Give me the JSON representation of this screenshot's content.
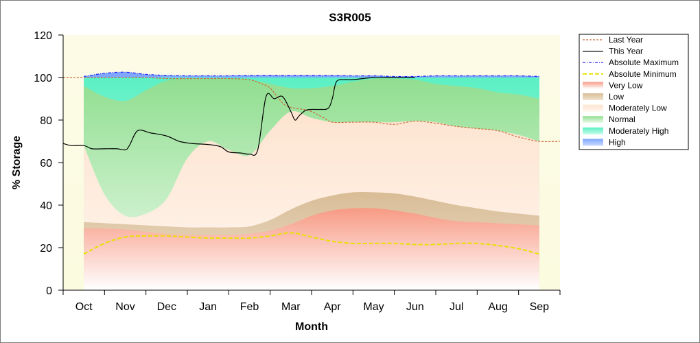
{
  "chart_data": {
    "type": "area",
    "title": "S3R005",
    "xlabel": "Month",
    "ylabel": "% Storage",
    "ylim": [
      0,
      120
    ],
    "yticks": [
      0,
      20,
      40,
      60,
      80,
      100,
      120
    ],
    "x_tick_labels": [
      "Oct",
      "Nov",
      "Dec",
      "Jan",
      "Feb",
      "Mar",
      "Apr",
      "May",
      "Jun",
      "Jul",
      "Aug",
      "Sep"
    ],
    "x_tick_positions": [
      0,
      1,
      2,
      3,
      4,
      5,
      6,
      7,
      8,
      9,
      10,
      11
    ],
    "xlim": [
      -0.5,
      11.5
    ],
    "grid": false,
    "legend_placement": "right",
    "colors": {
      "plot_bg": "#fcfde8",
      "very_low": "#f79a84",
      "low": "#d8bc96",
      "moderately_low": "#fde4d0",
      "normal": "#9ce29c",
      "moderately_high": "#62f0c8",
      "high": "#7fa6ff",
      "last_year": "#cc6a3a",
      "this_year": "#000000",
      "abs_max": "#1a1aff",
      "abs_min": "#e8e000"
    },
    "legend": [
      {
        "key": "last_year",
        "label": "Last Year",
        "kind": "line",
        "style": "dash"
      },
      {
        "key": "this_year",
        "label": "This Year",
        "kind": "line",
        "style": "solid"
      },
      {
        "key": "abs_max",
        "label": "Absolute Maximum",
        "kind": "line",
        "style": "dashdot"
      },
      {
        "key": "abs_min",
        "label": "Absolute Minimum",
        "kind": "line",
        "style": "dashbold"
      },
      {
        "key": "very_low",
        "label": "Very Low",
        "kind": "area"
      },
      {
        "key": "low",
        "label": "Low",
        "kind": "area"
      },
      {
        "key": "moderately_low",
        "label": "Moderately Low",
        "kind": "area"
      },
      {
        "key": "normal",
        "label": "Normal",
        "kind": "area"
      },
      {
        "key": "moderately_high",
        "label": "Moderately High",
        "kind": "area"
      },
      {
        "key": "high",
        "label": "High",
        "kind": "area"
      }
    ],
    "bands": {
      "x": [
        0,
        0.5,
        1,
        1.5,
        2,
        2.5,
        3,
        3.5,
        4,
        4.5,
        5,
        5.5,
        6,
        6.5,
        7,
        7.5,
        8,
        8.5,
        9,
        9.5,
        10,
        10.5,
        11
      ],
      "very_low_top": [
        29,
        29,
        28.5,
        27.5,
        26.5,
        26,
        26,
        26,
        26.5,
        28,
        31,
        35,
        37.5,
        38.5,
        38.5,
        37.5,
        36,
        34,
        32.5,
        32,
        31.5,
        31,
        30.5
      ],
      "low_top": [
        32,
        31.5,
        31,
        30.5,
        30,
        29.5,
        29.5,
        29.5,
        30,
        33,
        38,
        42,
        44.5,
        46,
        46,
        45.5,
        44,
        42,
        40,
        38.5,
        37,
        36,
        35
      ],
      "moderately_low_top": [
        68,
        45,
        35,
        36,
        43,
        62,
        70,
        66,
        63.5,
        75,
        84,
        81,
        79,
        79,
        79,
        79,
        79.5,
        79,
        77,
        76,
        75,
        73,
        70
      ],
      "normal_top": [
        96,
        91,
        89,
        94,
        98.5,
        99.5,
        99.5,
        99.5,
        99,
        97,
        95,
        95,
        96,
        98,
        99.5,
        99.5,
        99,
        97,
        96,
        95,
        93,
        92,
        90
      ],
      "moderately_high_top": [
        100,
        100,
        100,
        100,
        100,
        100,
        100,
        100,
        100,
        100,
        100,
        100,
        100,
        100,
        100,
        100,
        100,
        100,
        100,
        100,
        100,
        100,
        100
      ],
      "high_top": [
        100.5,
        102,
        102.5,
        101.5,
        101,
        100.8,
        100.8,
        100.8,
        101,
        101,
        101,
        101,
        101,
        100.8,
        100.8,
        100.5,
        100.5,
        100.8,
        100.8,
        100.8,
        100.8,
        100.8,
        100.5
      ]
    },
    "series": [
      {
        "key": "abs_max",
        "name": "Absolute Maximum",
        "x": [
          0,
          0.5,
          1,
          1.5,
          2,
          2.5,
          3,
          3.5,
          4,
          4.5,
          5,
          5.5,
          6,
          6.5,
          7,
          7.5,
          8,
          8.5,
          9,
          9.5,
          10,
          10.5,
          11
        ],
        "y": [
          100.5,
          102,
          102.5,
          101.5,
          101,
          100.8,
          100.8,
          100.8,
          101,
          101,
          101,
          101,
          101,
          100.8,
          100.8,
          100.5,
          100.5,
          100.8,
          100.8,
          100.8,
          100.8,
          100.8,
          100.5
        ]
      },
      {
        "key": "abs_min",
        "name": "Absolute Minimum",
        "x": [
          0,
          0.5,
          1,
          1.5,
          2,
          2.5,
          3,
          3.5,
          4,
          4.5,
          5,
          5.5,
          6,
          6.5,
          7,
          7.5,
          8,
          8.5,
          9,
          9.5,
          10,
          10.5,
          11
        ],
        "y": [
          17,
          22,
          25,
          25.5,
          25.5,
          25,
          24.5,
          24.5,
          24.5,
          25.5,
          27,
          25,
          23,
          22,
          22,
          22,
          21.5,
          21.5,
          22,
          22,
          21,
          19.5,
          17
        ]
      },
      {
        "key": "last_year",
        "name": "Last Year",
        "x": [
          -0.5,
          0,
          0.5,
          1,
          1.5,
          2,
          2.5,
          3,
          3.5,
          4,
          4.3,
          4.5,
          4.8,
          5,
          5.3,
          5.5,
          5.8,
          6,
          6.5,
          7,
          7.5,
          8,
          8.5,
          9,
          9.5,
          10,
          10.5,
          11,
          11.5
        ],
        "y": [
          100,
          100,
          100,
          100,
          100,
          99.5,
          99.5,
          99.5,
          99.5,
          99,
          97,
          95,
          88,
          86,
          85,
          84,
          81,
          79,
          79,
          79,
          78,
          79.5,
          78.5,
          77,
          76,
          75,
          72,
          70,
          70
        ]
      },
      {
        "key": "this_year",
        "name": "This Year",
        "x": [
          -0.5,
          -0.3,
          0,
          0.2,
          0.5,
          0.8,
          1,
          1.1,
          1.3,
          1.6,
          2,
          2.3,
          2.6,
          3,
          3.3,
          3.5,
          3.8,
          4,
          4.2,
          4.4,
          4.6,
          4.8,
          5,
          5.1,
          5.2,
          5.35,
          5.5,
          5.7,
          5.9,
          6,
          6.1,
          6.3,
          6.5,
          7,
          7.5,
          8
        ],
        "y": [
          69,
          68,
          68,
          66.5,
          66.5,
          66.5,
          66,
          68,
          75,
          74,
          72.5,
          70,
          69,
          68.5,
          67.5,
          65,
          64.5,
          64,
          66,
          91,
          90,
          91,
          84,
          80,
          82,
          84.5,
          85,
          85,
          85.5,
          90,
          98,
          99,
          99,
          100,
          100,
          100
        ]
      }
    ]
  }
}
